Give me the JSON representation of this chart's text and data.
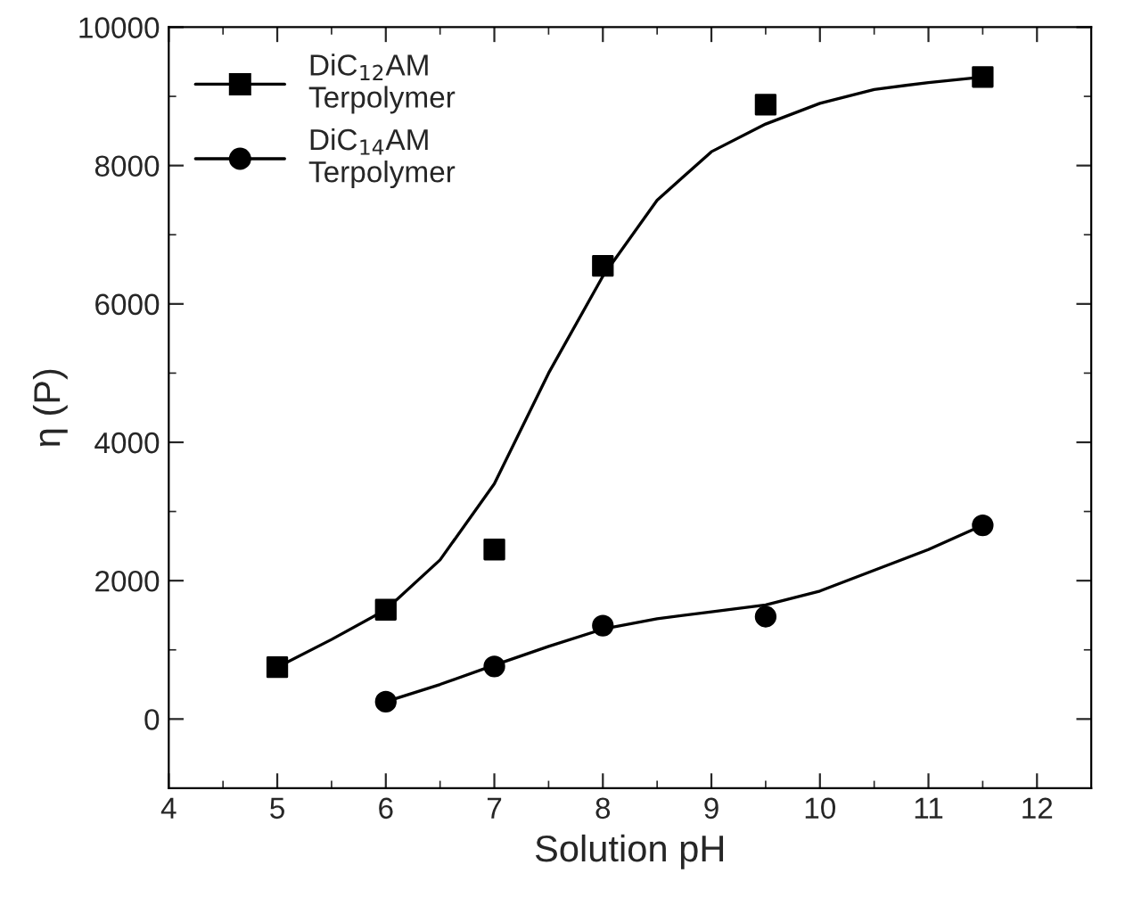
{
  "chart_data": {
    "type": "scatter",
    "xlabel": "Solution pH",
    "ylabel": "η (P)",
    "xlim": [
      4,
      12.5
    ],
    "xticks": [
      4,
      5,
      6,
      7,
      8,
      9,
      10,
      11,
      12
    ],
    "ylim": [
      -1000,
      10000
    ],
    "yticks": [
      0,
      2000,
      4000,
      6000,
      8000,
      10000
    ],
    "grid": false,
    "legend": "top left",
    "series": [
      {
        "name": "DiC$_{12}$AM\nTerpolymer",
        "marker": "square",
        "color": "#000000",
        "x": [
          5,
          6,
          7,
          8,
          9.5,
          11.5
        ],
        "values": [
          750,
          1580,
          2450,
          6550,
          8880,
          9280
        ]
      },
      {
        "name": "DiC$_{14}$AM\nTerpolymer",
        "marker": "circle",
        "color": "#000000",
        "x": [
          6,
          7,
          8,
          9.5,
          11.5
        ],
        "values": [
          250,
          760,
          1350,
          1480,
          2800
        ]
      },
      {
        "type": "line",
        "color": "#000000",
        "x": [
          5,
          5.5,
          6,
          6.5,
          7,
          7.5,
          8,
          8.5,
          9,
          9.5,
          10,
          10.5,
          11,
          11.5
        ],
        "values": [
          750,
          1150,
          1580,
          2300,
          3400,
          5000,
          6400,
          7500,
          8200,
          8600,
          8900,
          9100,
          9200,
          9280
        ]
      },
      {
        "type": "line",
        "color": "#000000",
        "x": [
          6,
          6.5,
          7,
          7.5,
          8,
          8.5,
          9,
          9.5,
          10,
          10.5,
          11,
          11.5
        ],
        "values": [
          250,
          500,
          780,
          1050,
          1300,
          1450,
          1550,
          1650,
          1850,
          2150,
          2450,
          2800
        ]
      }
    ]
  }
}
